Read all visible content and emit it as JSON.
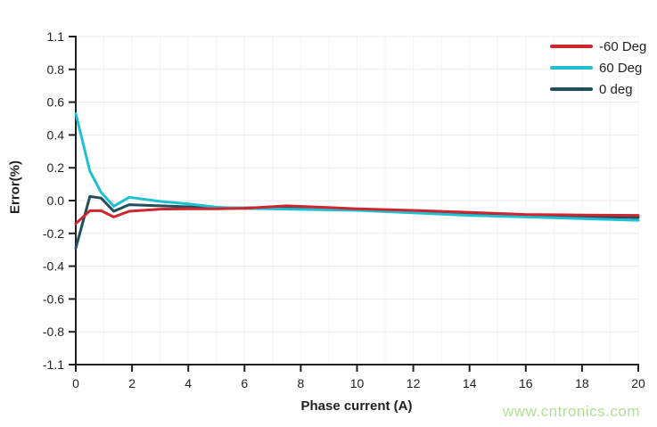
{
  "style": {
    "axis_color": "#231f20",
    "grid_color": "#e9e9e9",
    "minor_grid_color": "#f4f4f4",
    "tick_label_color": "#231f20"
  },
  "watermark": {
    "text": "www.cntronics.com",
    "color": "#b2e094"
  },
  "chart_data": {
    "type": "line",
    "title": "",
    "xlabel": "Phase current (A)",
    "ylabel": "Error(%)",
    "x_ticks": [
      "0",
      "2",
      "4",
      "6",
      "8",
      "10",
      "12",
      "14",
      "16",
      "18",
      "20"
    ],
    "y_ticks": [
      "1.1",
      "0.8",
      "0.6",
      "0.4",
      "0.2",
      "0.0",
      "-0.2",
      "-0.4",
      "-0.6",
      "-0.8",
      "-1.1"
    ],
    "xlim": [
      0,
      20
    ],
    "ylim": [
      -1.1,
      1.1
    ],
    "grid": true,
    "legend_position": "top-right",
    "series": [
      {
        "name": "-60 Deg",
        "color": "#ce252e",
        "points": [
          [
            0,
            -0.14
          ],
          [
            0.5,
            -0.062
          ],
          [
            0.9,
            -0.062
          ],
          [
            1.35,
            -0.1
          ],
          [
            1.9,
            -0.065
          ],
          [
            3,
            -0.052
          ],
          [
            4,
            -0.05
          ],
          [
            5,
            -0.05
          ],
          [
            6,
            -0.048
          ],
          [
            7.5,
            -0.032
          ],
          [
            10,
            -0.05
          ],
          [
            12,
            -0.06
          ],
          [
            14,
            -0.072
          ],
          [
            16,
            -0.085
          ],
          [
            18,
            -0.088
          ],
          [
            20,
            -0.09
          ]
        ]
      },
      {
        "name": "60 Deg",
        "color": "#1fc0d1",
        "points": [
          [
            0,
            0.53
          ],
          [
            0.5,
            0.18
          ],
          [
            0.9,
            0.05
          ],
          [
            1.35,
            -0.035
          ],
          [
            1.9,
            0.02
          ],
          [
            3,
            -0.005
          ],
          [
            4,
            -0.02
          ],
          [
            5,
            -0.04
          ],
          [
            6,
            -0.048
          ],
          [
            7.5,
            -0.052
          ],
          [
            10,
            -0.06
          ],
          [
            12,
            -0.075
          ],
          [
            14,
            -0.09
          ],
          [
            16,
            -0.1
          ],
          [
            18,
            -0.11
          ],
          [
            20,
            -0.12
          ]
        ]
      },
      {
        "name": "0 deg",
        "color": "#204f5c",
        "points": [
          [
            0,
            -0.29
          ],
          [
            0.5,
            0.025
          ],
          [
            0.9,
            0.015
          ],
          [
            1.35,
            -0.065
          ],
          [
            1.9,
            -0.025
          ],
          [
            3,
            -0.032
          ],
          [
            4,
            -0.038
          ],
          [
            5,
            -0.045
          ],
          [
            6,
            -0.045
          ],
          [
            7.5,
            -0.04
          ],
          [
            10,
            -0.055
          ],
          [
            12,
            -0.068
          ],
          [
            14,
            -0.08
          ],
          [
            16,
            -0.092
          ],
          [
            18,
            -0.098
          ],
          [
            20,
            -0.103
          ]
        ]
      }
    ]
  }
}
